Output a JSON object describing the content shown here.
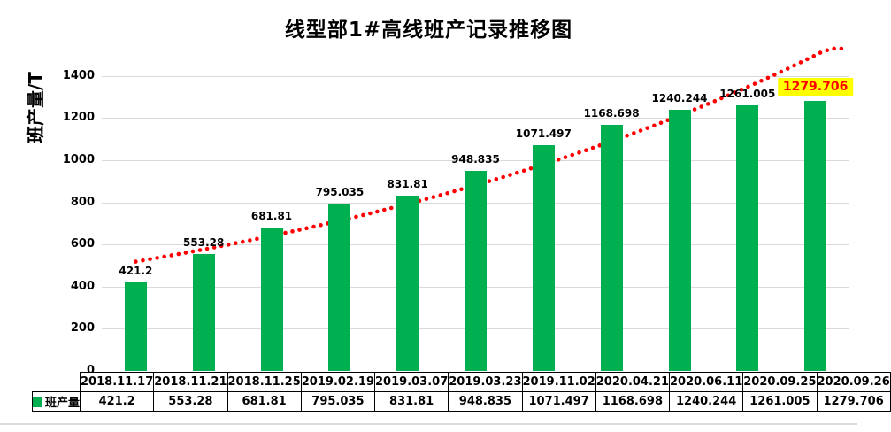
{
  "chart_data": {
    "type": "bar",
    "title": "线型部1#高线班产记录推移图",
    "ylabel": "班产量/T",
    "xlabel": "",
    "series_name": "班产量",
    "categories": [
      "2018.11.17",
      "2018.11.21",
      "2018.11.25",
      "2019.02.19",
      "2019.03.07",
      "2019.03.23",
      "2019.11.02",
      "2020.04.21",
      "2020.06.11",
      "2020.09.25",
      "2020.09.26"
    ],
    "values": [
      421.2,
      553.28,
      681.81,
      795.035,
      831.81,
      948.835,
      1071.497,
      1168.698,
      1240.244,
      1261.005,
      1279.706
    ],
    "labels": [
      "421.2",
      "553.28",
      "681.81",
      "795.035",
      "831.81",
      "948.835",
      "1071.497",
      "1168.698",
      "1240.244",
      "1261.005",
      "1279.706"
    ],
    "highlight_index": 10,
    "ylim": [
      0,
      1500
    ],
    "yticks": [
      0,
      200,
      400,
      600,
      800,
      1000,
      1200,
      1400
    ],
    "grid": true,
    "legend_position": "table-left",
    "trendline": {
      "type": "exponential",
      "style": "dotted"
    },
    "colors": {
      "bar": "#00B050",
      "trend": "#FF0000",
      "grid": "#D9D9D9",
      "text": "#000000",
      "table_border": "#000000",
      "highlight_bg": "#FFFF00",
      "highlight_text": "#FF0000"
    }
  }
}
